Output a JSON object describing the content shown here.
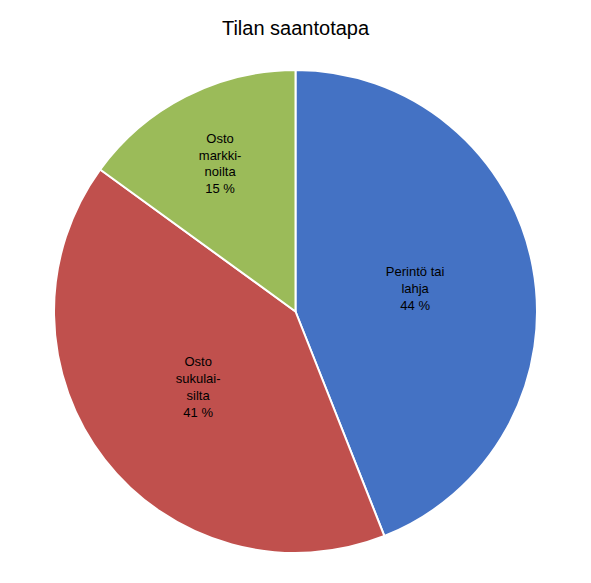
{
  "chart_data": {
    "type": "pie",
    "title": "Tilan saantotapa",
    "categories": [
      "Perintö tai\nlahja",
      "Osto\nsukulai-\nsilta",
      "Osto\nmarkki-\nnoilta"
    ],
    "values": [
      44,
      41,
      15
    ],
    "value_labels": [
      "44 %",
      "41 %",
      "15 %"
    ],
    "data_labels": true,
    "colors": [
      "#4472C4",
      "#C0504D",
      "#9BBB59"
    ]
  }
}
